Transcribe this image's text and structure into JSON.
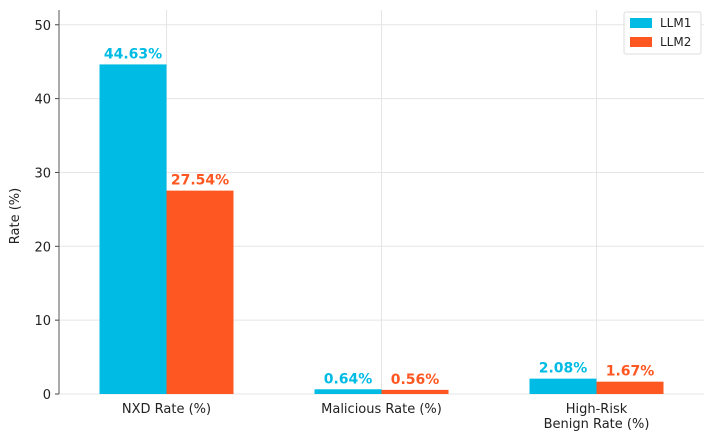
{
  "chart_data": {
    "type": "bar",
    "categories": [
      [
        "NXD Rate (%)"
      ],
      [
        "Malicious Rate (%)"
      ],
      [
        "High-Risk",
        "Benign Rate (%)"
      ]
    ],
    "series": [
      {
        "name": "LLM1",
        "color": "#00BCE4",
        "values": [
          44.63,
          0.64,
          2.08
        ],
        "labels": [
          "44.63%",
          "0.64%",
          "2.08%"
        ]
      },
      {
        "name": "LLM2",
        "color": "#FF5722",
        "values": [
          27.54,
          0.56,
          1.67
        ],
        "labels": [
          "27.54%",
          "0.56%",
          "1.67%"
        ]
      }
    ],
    "xlabel": "",
    "ylabel": "Rate (%)",
    "ylim": [
      0,
      52
    ],
    "yticks": [
      0,
      10,
      20,
      30,
      40,
      50
    ],
    "grid": true,
    "legend_position": "top-right"
  }
}
